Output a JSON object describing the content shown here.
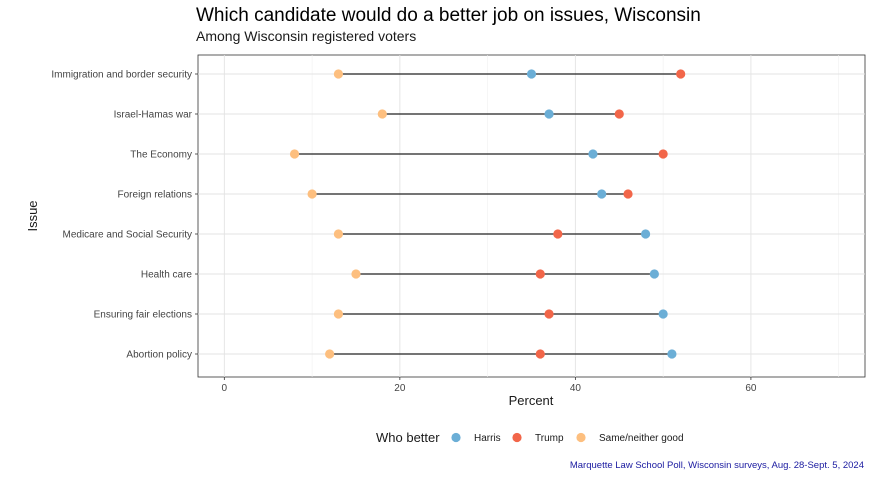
{
  "chart_data": {
    "type": "dumbbell",
    "title": "Which candidate would do a better job on issues, Wisconsin",
    "subtitle": "Among Wisconsin registered voters",
    "xlabel": "Percent",
    "ylabel": "Issue",
    "xlim": [
      -3,
      73
    ],
    "x_ticks": [
      0,
      20,
      40,
      60
    ],
    "grid": true,
    "legend_title": "Who better",
    "legend_position": "bottom",
    "caption": "Marquette Law School Poll, Wisconsin surveys, Aug. 28-Sept. 5, 2024",
    "categories": [
      "Immigration and border security",
      "Israel-Hamas war",
      "The Economy",
      "Foreign relations",
      "Medicare and Social Security",
      "Health care",
      "Ensuring fair elections",
      "Abortion policy"
    ],
    "series": [
      {
        "name": "Harris",
        "color": "#6baed6",
        "values": [
          35,
          37,
          42,
          43,
          48,
          49,
          50,
          51
        ]
      },
      {
        "name": "Trump",
        "color": "#f26649",
        "values": [
          52,
          45,
          50,
          46,
          38,
          36,
          37,
          36
        ]
      },
      {
        "name": "Same/neither good",
        "color": "#fdbf7f",
        "values": [
          13,
          18,
          8,
          10,
          13,
          15,
          13,
          12
        ]
      }
    ]
  }
}
